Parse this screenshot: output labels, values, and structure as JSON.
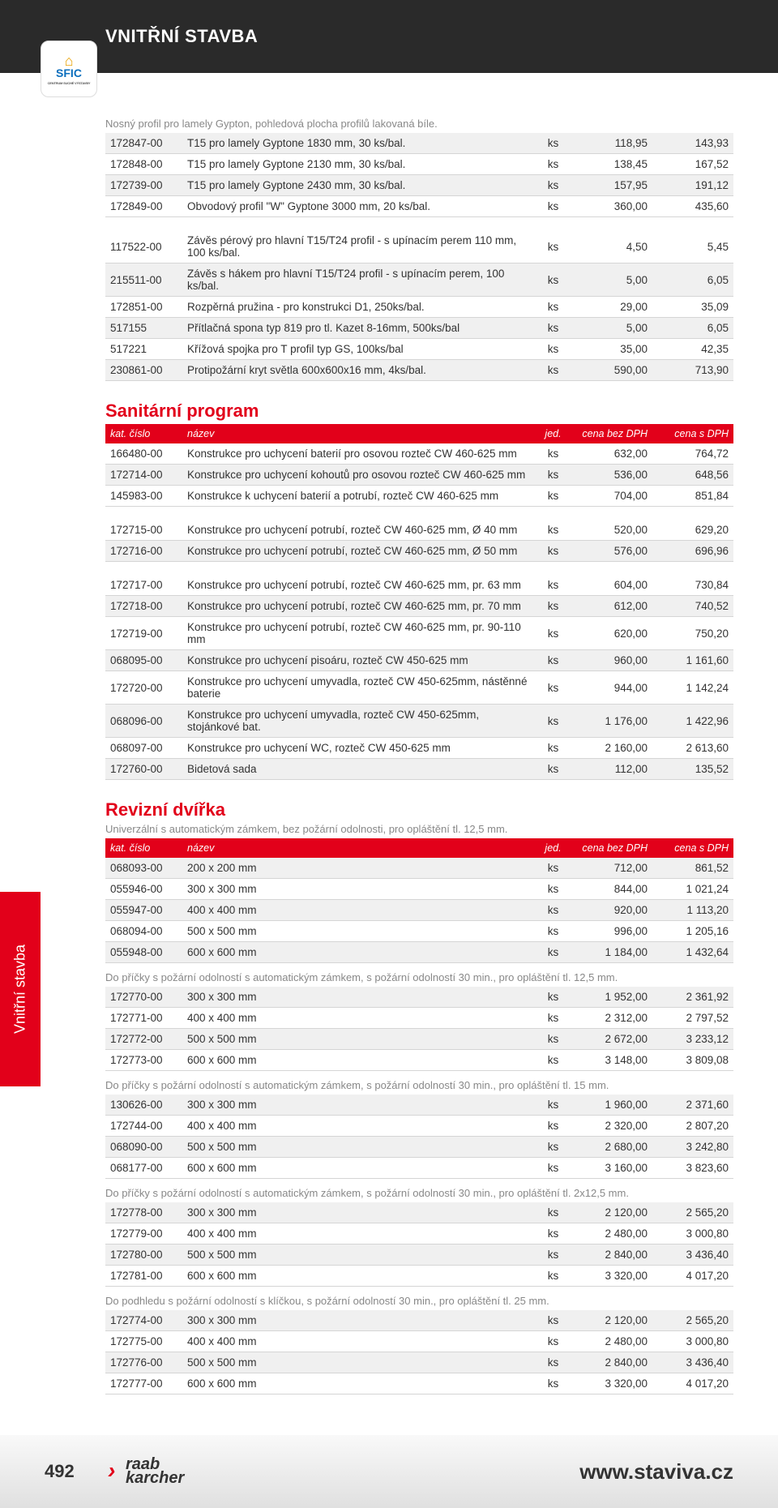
{
  "header": {
    "title": "VNITŘNÍ STAVBA"
  },
  "sfic": {
    "label": "SFIC",
    "sub": "CENTRUM SUCHÉ VÝSTAVBY"
  },
  "side_tab": "Vnitřní stavba",
  "intro_note": "Nosný profil pro lamely Gypton, pohledová plocha profilů lakovaná bíle.",
  "col_headers": {
    "code": "kat. číslo",
    "name": "název",
    "unit": "jed.",
    "p1": "cena bez DPH",
    "p2": "cena s DPH"
  },
  "section1_rows": [
    {
      "code": "172847-00",
      "name": "T15 pro lamely Gyptone 1830 mm, 30 ks/bal.",
      "unit": "ks",
      "p1": "118,95",
      "p2": "143,93",
      "alt": true
    },
    {
      "code": "172848-00",
      "name": "T15 pro lamely Gyptone 2130 mm, 30 ks/bal.",
      "unit": "ks",
      "p1": "138,45",
      "p2": "167,52",
      "alt": false
    },
    {
      "code": "172739-00",
      "name": "T15 pro lamely Gyptone 2430 mm, 30 ks/bal.",
      "unit": "ks",
      "p1": "157,95",
      "p2": "191,12",
      "alt": true
    },
    {
      "code": "172849-00",
      "name": "Obvodový profil \"W\" Gyptone 3000 mm, 20 ks/bal.",
      "unit": "ks",
      "p1": "360,00",
      "p2": "435,60",
      "alt": false
    }
  ],
  "section1b_rows": [
    {
      "code": "117522-00",
      "name": "Závěs pérový pro hlavní T15/T24 profil - s upínacím perem 110 mm, 100 ks/bal.",
      "unit": "ks",
      "p1": "4,50",
      "p2": "5,45",
      "alt": false
    },
    {
      "code": "215511-00",
      "name": "Závěs s hákem pro hlavní T15/T24 profil - s upínacím perem, 100 ks/bal.",
      "unit": "ks",
      "p1": "5,00",
      "p2": "6,05",
      "alt": true
    },
    {
      "code": "172851-00",
      "name": "Rozpěrná pružina - pro konstrukci D1, 250ks/bal.",
      "unit": "ks",
      "p1": "29,00",
      "p2": "35,09",
      "alt": false
    },
    {
      "code": "517155",
      "name": "Přítlačná spona typ 819 pro tl. Kazet 8-16mm, 500ks/bal",
      "unit": "ks",
      "p1": "5,00",
      "p2": "6,05",
      "alt": true
    },
    {
      "code": "517221",
      "name": "Křížová spojka pro T profil typ GS, 100ks/bal",
      "unit": "ks",
      "p1": "35,00",
      "p2": "42,35",
      "alt": false
    },
    {
      "code": "230861-00",
      "name": "Protipožární kryt světla 600x600x16 mm, 4ks/bal.",
      "unit": "ks",
      "p1": "590,00",
      "p2": "713,90",
      "alt": true
    }
  ],
  "sanitarni": {
    "title": "Sanitární program",
    "rowsA": [
      {
        "code": "166480-00",
        "name": "Konstrukce pro uchycení baterií pro osovou rozteč CW 460-625 mm",
        "unit": "ks",
        "p1": "632,00",
        "p2": "764,72",
        "alt": false
      },
      {
        "code": "172714-00",
        "name": "Konstrukce pro uchycení kohoutů pro osovou rozteč CW 460-625 mm",
        "unit": "ks",
        "p1": "536,00",
        "p2": "648,56",
        "alt": true
      },
      {
        "code": "145983-00",
        "name": "Konstrukce k uchycení baterií a potrubí, rozteč CW 460-625 mm",
        "unit": "ks",
        "p1": "704,00",
        "p2": "851,84",
        "alt": false
      }
    ],
    "rowsB": [
      {
        "code": "172715-00",
        "name": "Konstrukce pro uchycení potrubí, rozteč CW 460-625 mm, Ø 40 mm",
        "unit": "ks",
        "p1": "520,00",
        "p2": "629,20",
        "alt": false
      },
      {
        "code": "172716-00",
        "name": "Konstrukce pro uchycení potrubí, rozteč CW 460-625 mm, Ø 50 mm",
        "unit": "ks",
        "p1": "576,00",
        "p2": "696,96",
        "alt": true
      }
    ],
    "rowsC": [
      {
        "code": "172717-00",
        "name": "Konstrukce pro uchycení potrubí, rozteč CW 460-625 mm, pr. 63 mm",
        "unit": "ks",
        "p1": "604,00",
        "p2": "730,84",
        "alt": false
      },
      {
        "code": "172718-00",
        "name": "Konstrukce pro uchycení potrubí, rozteč CW 460-625 mm, pr. 70 mm",
        "unit": "ks",
        "p1": "612,00",
        "p2": "740,52",
        "alt": true
      },
      {
        "code": "172719-00",
        "name": "Konstrukce pro uchycení potrubí, rozteč CW 460-625 mm, pr. 90-110 mm",
        "unit": "ks",
        "p1": "620,00",
        "p2": "750,20",
        "alt": false
      },
      {
        "code": "068095-00",
        "name": "Konstrukce pro uchycení pisoáru, rozteč CW 450-625 mm",
        "unit": "ks",
        "p1": "960,00",
        "p2": "1 161,60",
        "alt": true
      },
      {
        "code": "172720-00",
        "name": "Konstrukce pro uchycení umyvadla, rozteč CW 450-625mm, nástěnné baterie",
        "unit": "ks",
        "p1": "944,00",
        "p2": "1 142,24",
        "alt": false
      },
      {
        "code": "068096-00",
        "name": "Konstrukce pro uchycení umyvadla, rozteč CW 450-625mm, stojánkové bat.",
        "unit": "ks",
        "p1": "1 176,00",
        "p2": "1 422,96",
        "alt": true
      },
      {
        "code": "068097-00",
        "name": "Konstrukce pro uchycení WC, rozteč CW 450-625 mm",
        "unit": "ks",
        "p1": "2 160,00",
        "p2": "2 613,60",
        "alt": false
      },
      {
        "code": "172760-00",
        "name": "Bidetová sada",
        "unit": "ks",
        "p1": "112,00",
        "p2": "135,52",
        "alt": true
      }
    ]
  },
  "revizni": {
    "title": "Revizní dvířka",
    "sub1": "Univerzální s automatickým zámkem, bez požární odolnosti, pro opláštění tl. 12,5 mm.",
    "rows1": [
      {
        "code": "068093-00",
        "name": "200 x 200 mm",
        "unit": "ks",
        "p1": "712,00",
        "p2": "861,52",
        "alt": true
      },
      {
        "code": "055946-00",
        "name": "300 x 300 mm",
        "unit": "ks",
        "p1": "844,00",
        "p2": "1 021,24",
        "alt": false
      },
      {
        "code": "055947-00",
        "name": "400 x 400 mm",
        "unit": "ks",
        "p1": "920,00",
        "p2": "1 113,20",
        "alt": true
      },
      {
        "code": "068094-00",
        "name": "500 x 500 mm",
        "unit": "ks",
        "p1": "996,00",
        "p2": "1 205,16",
        "alt": false
      },
      {
        "code": "055948-00",
        "name": "600 x 600 mm",
        "unit": "ks",
        "p1": "1 184,00",
        "p2": "1 432,64",
        "alt": true
      }
    ],
    "sub2": "Do příčky s požární odolností s automatickým zámkem, s požární odolností 30 min., pro opláštění tl. 12,5 mm.",
    "rows2": [
      {
        "code": "172770-00",
        "name": "300 x 300 mm",
        "unit": "ks",
        "p1": "1 952,00",
        "p2": "2 361,92",
        "alt": true
      },
      {
        "code": "172771-00",
        "name": "400 x 400 mm",
        "unit": "ks",
        "p1": "2 312,00",
        "p2": "2 797,52",
        "alt": false
      },
      {
        "code": "172772-00",
        "name": "500 x 500 mm",
        "unit": "ks",
        "p1": "2 672,00",
        "p2": "3 233,12",
        "alt": true
      },
      {
        "code": "172773-00",
        "name": "600 x 600 mm",
        "unit": "ks",
        "p1": "3 148,00",
        "p2": "3 809,08",
        "alt": false
      }
    ],
    "sub3": "Do příčky s požární odolností s automatickým zámkem, s požární odolností 30 min., pro opláštění tl. 15 mm.",
    "rows3": [
      {
        "code": "130626-00",
        "name": "300 x 300 mm",
        "unit": "ks",
        "p1": "1 960,00",
        "p2": "2 371,60",
        "alt": true
      },
      {
        "code": "172744-00",
        "name": "400 x 400 mm",
        "unit": "ks",
        "p1": "2 320,00",
        "p2": "2 807,20",
        "alt": false
      },
      {
        "code": "068090-00",
        "name": "500 x 500 mm",
        "unit": "ks",
        "p1": "2 680,00",
        "p2": "3 242,80",
        "alt": true
      },
      {
        "code": "068177-00",
        "name": "600 x 600 mm",
        "unit": "ks",
        "p1": "3 160,00",
        "p2": "3 823,60",
        "alt": false
      }
    ],
    "sub4": "Do příčky s požární odolností s automatickým zámkem, s požární odolností 30 min., pro opláštění tl. 2x12,5 mm.",
    "rows4": [
      {
        "code": "172778-00",
        "name": "300 x 300 mm",
        "unit": "ks",
        "p1": "2 120,00",
        "p2": "2 565,20",
        "alt": true
      },
      {
        "code": "172779-00",
        "name": "400 x 400 mm",
        "unit": "ks",
        "p1": "2 480,00",
        "p2": "3 000,80",
        "alt": false
      },
      {
        "code": "172780-00",
        "name": "500 x 500 mm",
        "unit": "ks",
        "p1": "2 840,00",
        "p2": "3 436,40",
        "alt": true
      },
      {
        "code": "172781-00",
        "name": "600 x 600 mm",
        "unit": "ks",
        "p1": "3 320,00",
        "p2": "4 017,20",
        "alt": false
      }
    ],
    "sub5": "Do podhledu s požární odolností s klíčkou, s požární odolností 30 min., pro opláštění tl. 25 mm.",
    "rows5": [
      {
        "code": "172774-00",
        "name": "300 x 300 mm",
        "unit": "ks",
        "p1": "2 120,00",
        "p2": "2 565,20",
        "alt": true
      },
      {
        "code": "172775-00",
        "name": "400 x 400 mm",
        "unit": "ks",
        "p1": "2 480,00",
        "p2": "3 000,80",
        "alt": false
      },
      {
        "code": "172776-00",
        "name": "500 x 500 mm",
        "unit": "ks",
        "p1": "2 840,00",
        "p2": "3 436,40",
        "alt": true
      },
      {
        "code": "172777-00",
        "name": "600 x 600 mm",
        "unit": "ks",
        "p1": "3 320,00",
        "p2": "4 017,20",
        "alt": false
      }
    ]
  },
  "footer": {
    "page": "492",
    "logo1": "raab",
    "logo2": "karcher",
    "url": "www.staviva.cz"
  }
}
